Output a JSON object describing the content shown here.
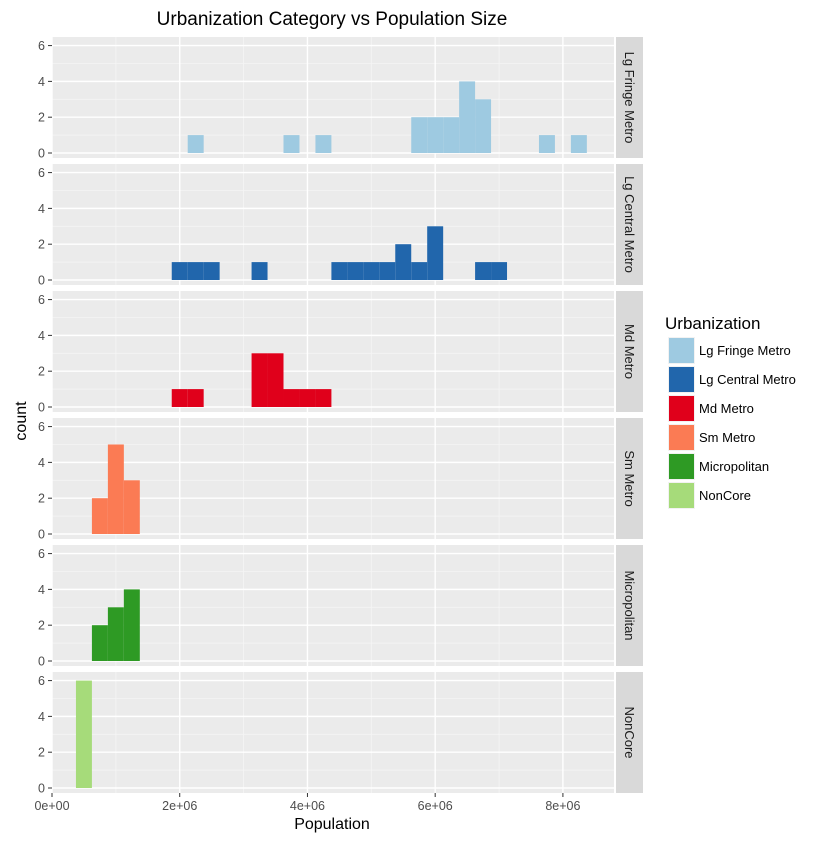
{
  "chart_data": {
    "type": "bar",
    "chart_kind": "faceted histogram",
    "title": "Urbanization Category vs Population Size",
    "xlabel": "Population",
    "ylabel": "count",
    "xlim": [
      0,
      8800000
    ],
    "ylim": [
      0,
      6.2
    ],
    "bin_width": 250000,
    "x_ticks": [
      0,
      2000000,
      4000000,
      6000000,
      8000000
    ],
    "x_tick_labels": [
      "0e+00",
      "2e+06",
      "4e+06",
      "6e+06",
      "8e+06"
    ],
    "y_ticks": [
      0,
      2,
      4,
      6
    ],
    "y_tick_labels": [
      "0",
      "2",
      "4",
      "6"
    ],
    "grid": true,
    "legend": {
      "title": "Urbanization",
      "placement": "right",
      "entries": [
        "Lg Fringe Metro",
        "Lg Central Metro",
        "Md Metro",
        "Sm Metro",
        "Micropolitan",
        "NonCore"
      ]
    },
    "panels": [
      {
        "name": "Lg Fringe Metro",
        "color": "#9ECAE1",
        "bars": [
          {
            "x0": 2125000,
            "x1": 2375000,
            "count": 1
          },
          {
            "x0": 3625000,
            "x1": 3875000,
            "count": 1
          },
          {
            "x0": 4125000,
            "x1": 4375000,
            "count": 1
          },
          {
            "x0": 5625000,
            "x1": 5875000,
            "count": 2
          },
          {
            "x0": 5875000,
            "x1": 6125000,
            "count": 2
          },
          {
            "x0": 6125000,
            "x1": 6375000,
            "count": 2
          },
          {
            "x0": 6375000,
            "x1": 6625000,
            "count": 4
          },
          {
            "x0": 6625000,
            "x1": 6875000,
            "count": 3
          },
          {
            "x0": 7625000,
            "x1": 7875000,
            "count": 1
          },
          {
            "x0": 8125000,
            "x1": 8375000,
            "count": 1
          }
        ]
      },
      {
        "name": "Lg Central Metro",
        "color": "#2166AC",
        "bars": [
          {
            "x0": 1875000,
            "x1": 2125000,
            "count": 1
          },
          {
            "x0": 2125000,
            "x1": 2375000,
            "count": 1
          },
          {
            "x0": 2375000,
            "x1": 2625000,
            "count": 1
          },
          {
            "x0": 3125000,
            "x1": 3375000,
            "count": 1
          },
          {
            "x0": 4375000,
            "x1": 4625000,
            "count": 1
          },
          {
            "x0": 4625000,
            "x1": 4875000,
            "count": 1
          },
          {
            "x0": 4875000,
            "x1": 5125000,
            "count": 1
          },
          {
            "x0": 5125000,
            "x1": 5375000,
            "count": 1
          },
          {
            "x0": 5375000,
            "x1": 5625000,
            "count": 2
          },
          {
            "x0": 5625000,
            "x1": 5875000,
            "count": 1
          },
          {
            "x0": 5875000,
            "x1": 6125000,
            "count": 3
          },
          {
            "x0": 6625000,
            "x1": 6875000,
            "count": 1
          },
          {
            "x0": 6875000,
            "x1": 7125000,
            "count": 1
          }
        ]
      },
      {
        "name": "Md Metro",
        "color": "#E0001B",
        "bars": [
          {
            "x0": 1875000,
            "x1": 2125000,
            "count": 1
          },
          {
            "x0": 2125000,
            "x1": 2375000,
            "count": 1
          },
          {
            "x0": 3125000,
            "x1": 3375000,
            "count": 3
          },
          {
            "x0": 3375000,
            "x1": 3625000,
            "count": 3
          },
          {
            "x0": 3625000,
            "x1": 3875000,
            "count": 1
          },
          {
            "x0": 3875000,
            "x1": 4125000,
            "count": 1
          },
          {
            "x0": 4125000,
            "x1": 4375000,
            "count": 1
          }
        ]
      },
      {
        "name": "Sm Metro",
        "color": "#FB7B54",
        "bars": [
          {
            "x0": 625000,
            "x1": 875000,
            "count": 2
          },
          {
            "x0": 875000,
            "x1": 1125000,
            "count": 5
          },
          {
            "x0": 1125000,
            "x1": 1375000,
            "count": 3
          }
        ]
      },
      {
        "name": "Micropolitan",
        "color": "#2E9A24",
        "bars": [
          {
            "x0": 625000,
            "x1": 875000,
            "count": 2
          },
          {
            "x0": 875000,
            "x1": 1125000,
            "count": 3
          },
          {
            "x0": 1125000,
            "x1": 1375000,
            "count": 4
          }
        ]
      },
      {
        "name": "NonCore",
        "color": "#A6DB7A",
        "bars": [
          {
            "x0": 375000,
            "x1": 625000,
            "count": 6
          }
        ]
      }
    ]
  }
}
